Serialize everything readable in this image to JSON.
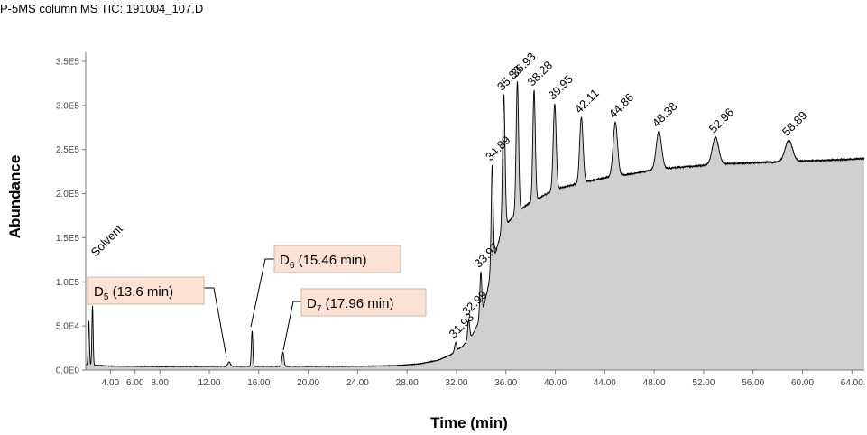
{
  "chart_data": {
    "type": "line",
    "title": "P-5MS column MS TIC: 191004_107.D",
    "xlabel": "Time (min)",
    "ylabel": "Abundance",
    "xlim": [
      2.0,
      65.0
    ],
    "ylim": [
      0,
      350000
    ],
    "x_ticks": [
      "4.00",
      "6.00",
      "8.00",
      "12.00",
      "16.00",
      "20.00",
      "24.00",
      "28.00",
      "32.00",
      "36.00",
      "40.00",
      "44.00",
      "48.00",
      "52.00",
      "56.00",
      "60.00",
      "64.00"
    ],
    "x_tick_values": [
      4,
      6,
      8,
      12,
      16,
      20,
      24,
      28,
      32,
      36,
      40,
      44,
      48,
      52,
      56,
      60,
      64
    ],
    "y_ticks": [
      "0.0E0",
      "5.0E4",
      "1.0E5",
      "1.5E5",
      "2.0E5",
      "2.5E5",
      "3.0E5",
      "3.5E5"
    ],
    "y_tick_values": [
      0,
      50000,
      100000,
      150000,
      200000,
      250000,
      300000,
      350000
    ],
    "grid": false,
    "fill_color": "#d0d0d0",
    "line_color": "#000000",
    "baseline": [
      [
        2.0,
        6000
      ],
      [
        4.0,
        4500
      ],
      [
        8.0,
        4000
      ],
      [
        12.0,
        4200
      ],
      [
        16.0,
        4300
      ],
      [
        20.0,
        4200
      ],
      [
        24.0,
        4300
      ],
      [
        27.0,
        5000
      ],
      [
        29.0,
        7000
      ],
      [
        30.5,
        11000
      ],
      [
        31.5,
        17000
      ],
      [
        32.5,
        27000
      ],
      [
        33.3,
        40000
      ],
      [
        34.0,
        60000
      ],
      [
        34.5,
        90000
      ],
      [
        35.0,
        125000
      ],
      [
        35.5,
        150000
      ],
      [
        36.0,
        165000
      ],
      [
        37.0,
        180000
      ],
      [
        38.0,
        190000
      ],
      [
        40.0,
        205000
      ],
      [
        42.0,
        212000
      ],
      [
        44.0,
        218000
      ],
      [
        46.0,
        222000
      ],
      [
        48.0,
        227000
      ],
      [
        50.0,
        230000
      ],
      [
        52.0,
        232000
      ],
      [
        54.0,
        234000
      ],
      [
        56.0,
        235000
      ],
      [
        58.0,
        236000
      ],
      [
        60.0,
        237000
      ],
      [
        62.0,
        238000
      ],
      [
        64.0,
        239000
      ],
      [
        65.0,
        240000
      ]
    ],
    "peaks": [
      {
        "rt": 2.25,
        "height": 50000,
        "width": 0.05
      },
      {
        "rt": 2.55,
        "height": 67000,
        "width": 0.05
      },
      {
        "rt": 13.6,
        "height": 5000,
        "width": 0.1
      },
      {
        "rt": 15.46,
        "height": 40000,
        "width": 0.06
      },
      {
        "rt": 17.96,
        "height": 16000,
        "width": 0.08
      },
      {
        "rt": 31.93,
        "height": 10000,
        "width": 0.08
      },
      {
        "rt": 32.99,
        "height": 22000,
        "width": 0.08
      },
      {
        "rt": 33.97,
        "height": 52000,
        "width": 0.08
      },
      {
        "rt": 34.89,
        "height": 115000,
        "width": 0.08
      },
      {
        "rt": 35.83,
        "height": 152000,
        "width": 0.1
      },
      {
        "rt": 36.93,
        "height": 148000,
        "width": 0.1
      },
      {
        "rt": 38.28,
        "height": 125000,
        "width": 0.1
      },
      {
        "rt": 39.95,
        "height": 97000,
        "width": 0.12
      },
      {
        "rt": 42.11,
        "height": 74000,
        "width": 0.14
      },
      {
        "rt": 44.86,
        "height": 61000,
        "width": 0.18
      },
      {
        "rt": 48.38,
        "height": 43000,
        "width": 0.22
      },
      {
        "rt": 52.96,
        "height": 31000,
        "width": 0.26
      },
      {
        "rt": 58.89,
        "height": 24000,
        "width": 0.3
      }
    ],
    "peak_labels": [
      {
        "text": "31.93",
        "rt": 31.93
      },
      {
        "text": "32.99",
        "rt": 32.99
      },
      {
        "text": "33.97",
        "rt": 33.97
      },
      {
        "text": "34.89",
        "rt": 34.89
      },
      {
        "text": "35.83",
        "rt": 35.83
      },
      {
        "text": "36.93",
        "rt": 36.93
      },
      {
        "text": "38.28",
        "rt": 38.28
      },
      {
        "text": "39.95",
        "rt": 39.95
      },
      {
        "text": "42.11",
        "rt": 42.11
      },
      {
        "text": "44.86",
        "rt": 44.86
      },
      {
        "text": "48.38",
        "rt": 48.38
      },
      {
        "text": "52.96",
        "rt": 52.96
      },
      {
        "text": "58.89",
        "rt": 58.89
      }
    ],
    "annotations": {
      "solvent": "Solvent",
      "d5": {
        "main": "D",
        "sub": "5",
        "rest": " (13.6 min)",
        "rt": 13.6
      },
      "d6": {
        "main": "D",
        "sub": "6",
        "rest": " (15.46 min)",
        "rt": 15.46
      },
      "d7": {
        "main": "D",
        "sub": "7",
        "rest": " (17.96 min)",
        "rt": 17.96
      },
      "box_fill": "#fbe2d3",
      "box_stroke": "#c8b8ae"
    }
  }
}
